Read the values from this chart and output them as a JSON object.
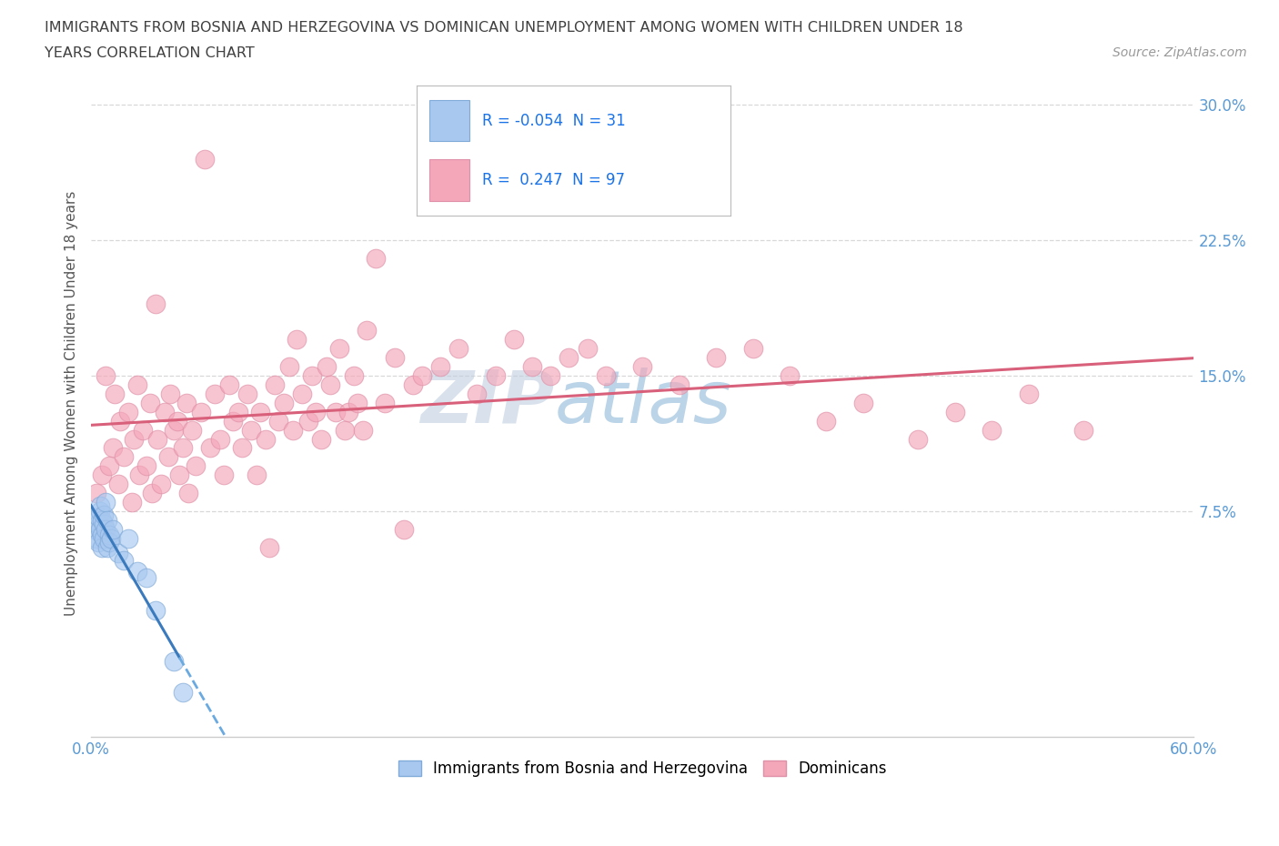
{
  "title_line1": "IMMIGRANTS FROM BOSNIA AND HERZEGOVINA VS DOMINICAN UNEMPLOYMENT AMONG WOMEN WITH CHILDREN UNDER 18",
  "title_line2": "YEARS CORRELATION CHART",
  "source": "Source: ZipAtlas.com",
  "ylabel": "Unemployment Among Women with Children Under 18 years",
  "xlim": [
    0.0,
    0.6
  ],
  "ylim": [
    -0.05,
    0.32
  ],
  "yticks": [
    0.075,
    0.15,
    0.225,
    0.3
  ],
  "ytick_labels": [
    "7.5%",
    "15.0%",
    "22.5%",
    "30.0%"
  ],
  "xticks": [
    0.0,
    0.1,
    0.2,
    0.3,
    0.4,
    0.5,
    0.6
  ],
  "xtick_labels": [
    "0.0%",
    "",
    "",
    "",
    "",
    "",
    "60.0%"
  ],
  "r_bosnia": -0.054,
  "n_bosnia": 31,
  "r_dominican": 0.247,
  "n_dominican": 97,
  "color_bosnia": "#a8c8f0",
  "color_dominican": "#f4a7b9",
  "line_color_bosnia_solid": "#3a7abd",
  "line_color_bosnia_dashed": "#6aaae0",
  "line_color_dominican": "#d9607a",
  "background_color": "#ffffff",
  "grid_color": "#d8d8d8",
  "axis_label_color": "#5b9bd5",
  "title_color": "#404040",
  "legend_r_color": "#1a73e8",
  "watermark_color_zip": "#c0cfe0",
  "watermark_color_atlas": "#90b8d8",
  "bosnia_x": [
    0.002,
    0.003,
    0.003,
    0.004,
    0.004,
    0.004,
    0.005,
    0.005,
    0.005,
    0.006,
    0.006,
    0.006,
    0.007,
    0.007,
    0.007,
    0.008,
    0.008,
    0.009,
    0.009,
    0.01,
    0.01,
    0.011,
    0.012,
    0.015,
    0.018,
    0.02,
    0.025,
    0.03,
    0.035,
    0.045,
    0.05
  ],
  "bosnia_y": [
    0.065,
    0.07,
    0.06,
    0.068,
    0.072,
    0.058,
    0.075,
    0.065,
    0.078,
    0.062,
    0.07,
    0.055,
    0.068,
    0.073,
    0.06,
    0.065,
    0.08,
    0.055,
    0.07,
    0.062,
    0.058,
    0.06,
    0.065,
    0.052,
    0.048,
    0.06,
    0.042,
    0.038,
    0.02,
    -0.008,
    -0.025
  ],
  "dominican_x": [
    0.003,
    0.006,
    0.008,
    0.01,
    0.012,
    0.013,
    0.015,
    0.016,
    0.018,
    0.02,
    0.022,
    0.023,
    0.025,
    0.026,
    0.028,
    0.03,
    0.032,
    0.033,
    0.035,
    0.036,
    0.038,
    0.04,
    0.042,
    0.043,
    0.045,
    0.047,
    0.048,
    0.05,
    0.052,
    0.053,
    0.055,
    0.057,
    0.06,
    0.062,
    0.065,
    0.067,
    0.07,
    0.072,
    0.075,
    0.077,
    0.08,
    0.082,
    0.085,
    0.087,
    0.09,
    0.092,
    0.095,
    0.097,
    0.1,
    0.102,
    0.105,
    0.108,
    0.11,
    0.112,
    0.115,
    0.118,
    0.12,
    0.122,
    0.125,
    0.128,
    0.13,
    0.133,
    0.135,
    0.138,
    0.14,
    0.143,
    0.145,
    0.148,
    0.15,
    0.155,
    0.16,
    0.165,
    0.17,
    0.175,
    0.18,
    0.19,
    0.2,
    0.21,
    0.22,
    0.23,
    0.24,
    0.25,
    0.26,
    0.27,
    0.28,
    0.3,
    0.32,
    0.34,
    0.36,
    0.38,
    0.4,
    0.42,
    0.45,
    0.47,
    0.49,
    0.51,
    0.54
  ],
  "dominican_y": [
    0.085,
    0.095,
    0.15,
    0.1,
    0.11,
    0.14,
    0.09,
    0.125,
    0.105,
    0.13,
    0.08,
    0.115,
    0.145,
    0.095,
    0.12,
    0.1,
    0.135,
    0.085,
    0.19,
    0.115,
    0.09,
    0.13,
    0.105,
    0.14,
    0.12,
    0.125,
    0.095,
    0.11,
    0.135,
    0.085,
    0.12,
    0.1,
    0.13,
    0.27,
    0.11,
    0.14,
    0.115,
    0.095,
    0.145,
    0.125,
    0.13,
    0.11,
    0.14,
    0.12,
    0.095,
    0.13,
    0.115,
    0.055,
    0.145,
    0.125,
    0.135,
    0.155,
    0.12,
    0.17,
    0.14,
    0.125,
    0.15,
    0.13,
    0.115,
    0.155,
    0.145,
    0.13,
    0.165,
    0.12,
    0.13,
    0.15,
    0.135,
    0.12,
    0.175,
    0.215,
    0.135,
    0.16,
    0.065,
    0.145,
    0.15,
    0.155,
    0.165,
    0.14,
    0.15,
    0.17,
    0.155,
    0.15,
    0.16,
    0.165,
    0.15,
    0.155,
    0.145,
    0.16,
    0.165,
    0.15,
    0.125,
    0.135,
    0.115,
    0.13,
    0.12,
    0.14,
    0.12
  ]
}
